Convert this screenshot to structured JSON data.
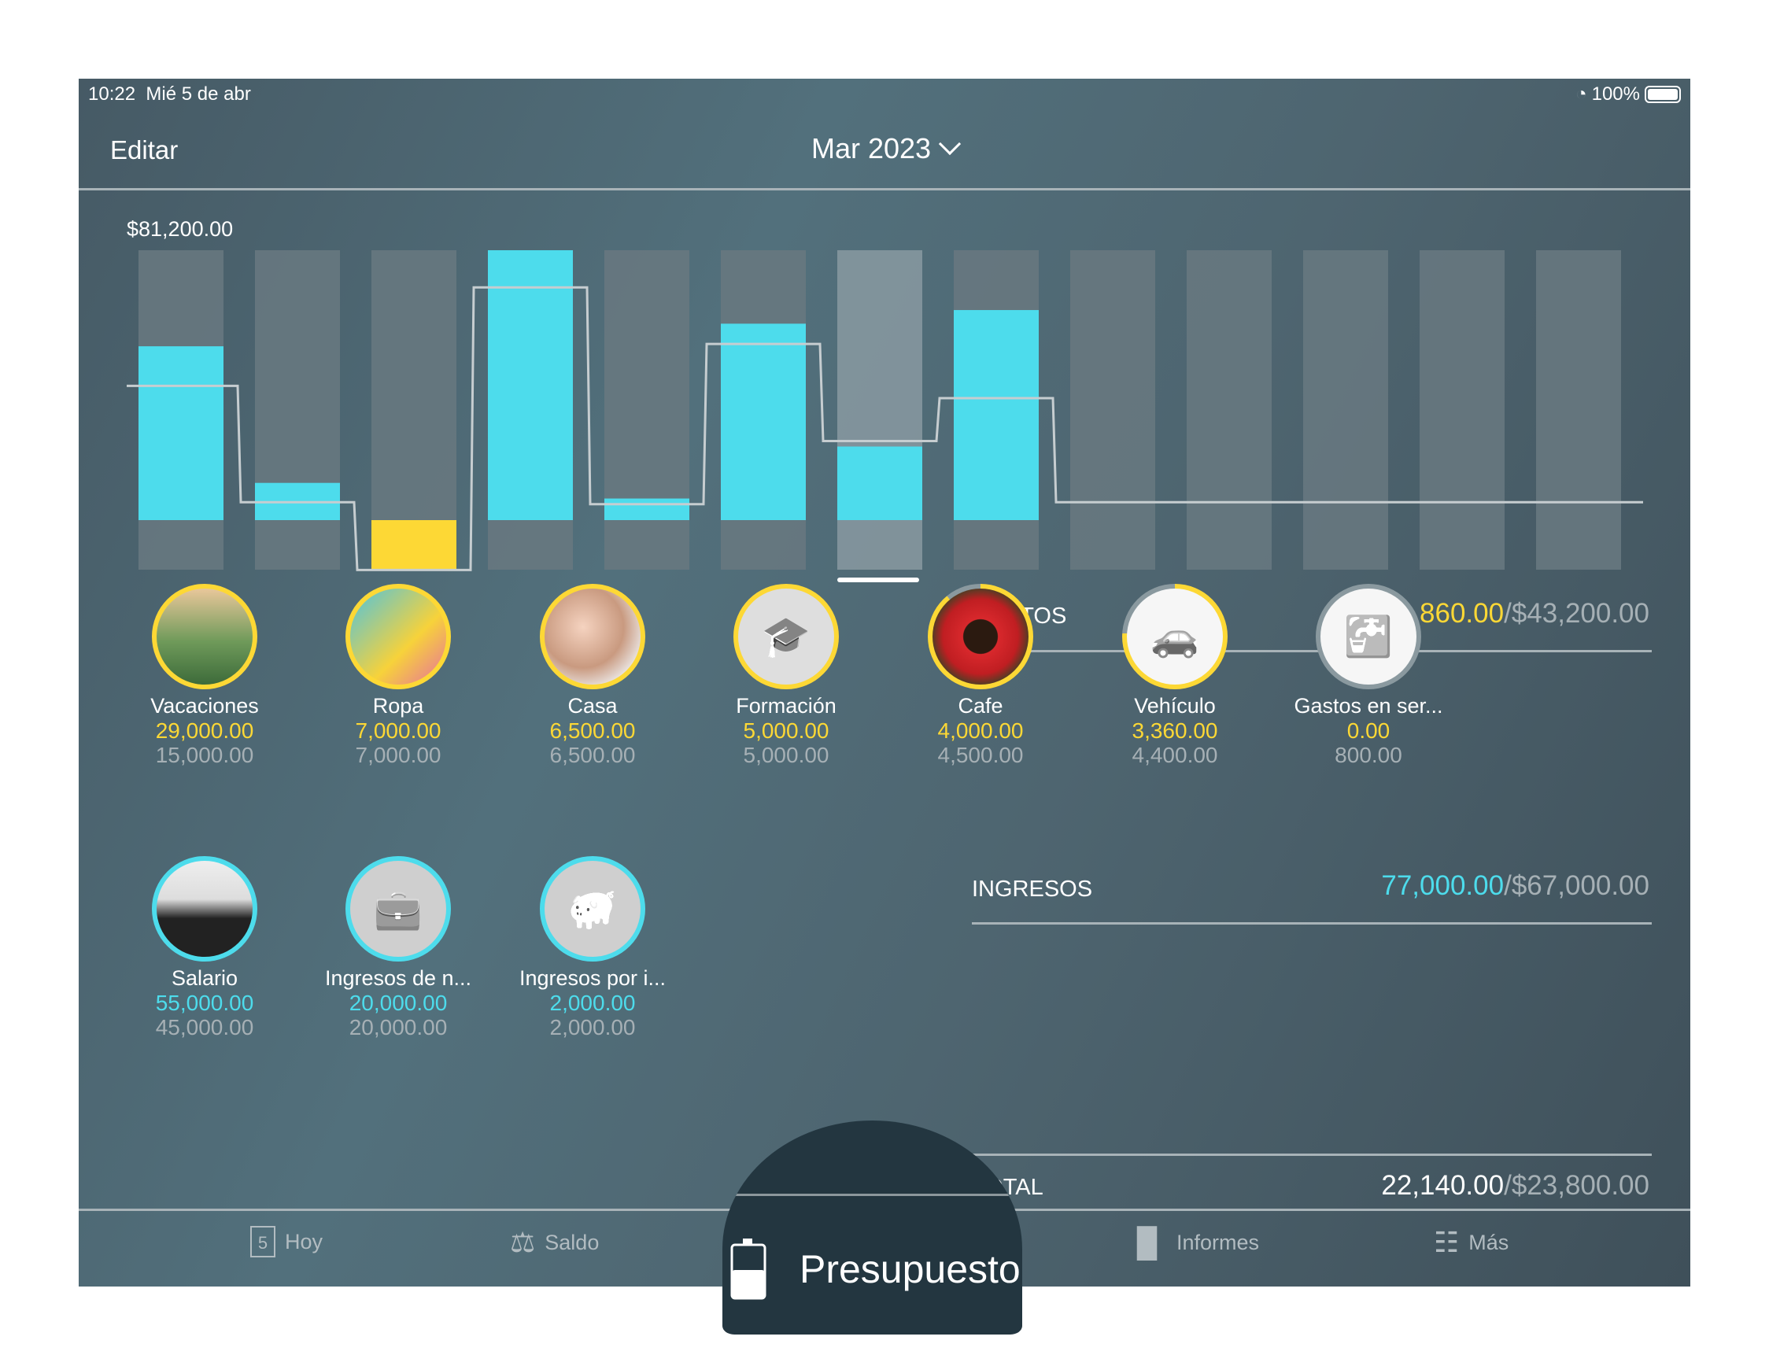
{
  "status_bar": {
    "time": "10:22",
    "date": "Mié 5 de abr",
    "battery": "100%",
    "wifi_icon": "wifi-icon",
    "battery_level": 1.0
  },
  "nav": {
    "edit": "Editar",
    "month": "Mar 2023"
  },
  "colors": {
    "spent": "#4ddcec",
    "over": "#fdd835",
    "budget_line": "#c6cdd0",
    "column": "#67787f",
    "column_selected": "#85979e"
  },
  "chart_data": {
    "type": "bar",
    "max_label": "$81,200.00",
    "ylim": [
      -15000,
      81200
    ],
    "selected_index": 6,
    "series": [
      {
        "type": "bar",
        "values": [
          52300,
          11200,
          -15000,
          81200,
          6500,
          59100,
          22140,
          63200,
          0,
          0,
          0,
          0,
          0
        ]
      },
      {
        "type": "step",
        "values": [
          40400,
          5400,
          -15000,
          70000,
          4800,
          53000,
          23800,
          36700,
          5400,
          5400,
          5400,
          5400,
          5400
        ]
      }
    ]
  },
  "expenses": {
    "title": "GASTOS",
    "spent": "54,860.00",
    "budget": "/$43,200.00",
    "items": [
      {
        "name": "Vacaciones",
        "spent": "29,000.00",
        "budget": "15,000.00",
        "progress": 1.0,
        "icon": "vacation-photo"
      },
      {
        "name": "Ropa",
        "spent": "7,000.00",
        "budget": "7,000.00",
        "progress": 1.0,
        "icon": "shopping-bags-photo"
      },
      {
        "name": "Casa",
        "spent": "6,500.00",
        "budget": "6,500.00",
        "progress": 1.0,
        "icon": "family-photo"
      },
      {
        "name": "Formación",
        "spent": "5,000.00",
        "budget": "5,000.00",
        "progress": 1.0,
        "icon": "graduation-cap-icon"
      },
      {
        "name": "Cafe",
        "spent": "4,000.00",
        "budget": "4,500.00",
        "progress": 0.89,
        "icon": "coffee-cup-photo"
      },
      {
        "name": "Vehículo",
        "spent": "3,360.00",
        "budget": "4,400.00",
        "progress": 0.76,
        "icon": "car-icon"
      },
      {
        "name": "Gastos en ser...",
        "spent": "0.00",
        "budget": "800.00",
        "progress": 0,
        "icon": "faucet-icon"
      }
    ]
  },
  "income": {
    "title": "INGRESOS",
    "earned": "77,000.00",
    "budget": "/$67,000.00",
    "items": [
      {
        "name": "Salario",
        "earned": "55,000.00",
        "budget": "45,000.00",
        "icon": "businessman-photo"
      },
      {
        "name": "Ingresos de n...",
        "earned": "20,000.00",
        "budget": "20,000.00",
        "icon": "briefcase-icon"
      },
      {
        "name": "Ingresos por i...",
        "earned": "2,000.00",
        "budget": "2,000.00",
        "icon": "piggy-bank-icon"
      }
    ]
  },
  "total": {
    "title": "TOTAL",
    "value": "22,140.00",
    "budget": "/$23,800.00"
  },
  "tabs": [
    {
      "label": "Hoy",
      "icon": "calendar-icon",
      "day": "5"
    },
    {
      "label": "Saldo",
      "icon": "scale-icon"
    },
    {
      "label": "Presupuesto",
      "icon": "budget-icon",
      "active": true
    },
    {
      "label": "Informes",
      "icon": "bar-chart-icon"
    },
    {
      "label": "Más",
      "icon": "document-icon"
    }
  ]
}
